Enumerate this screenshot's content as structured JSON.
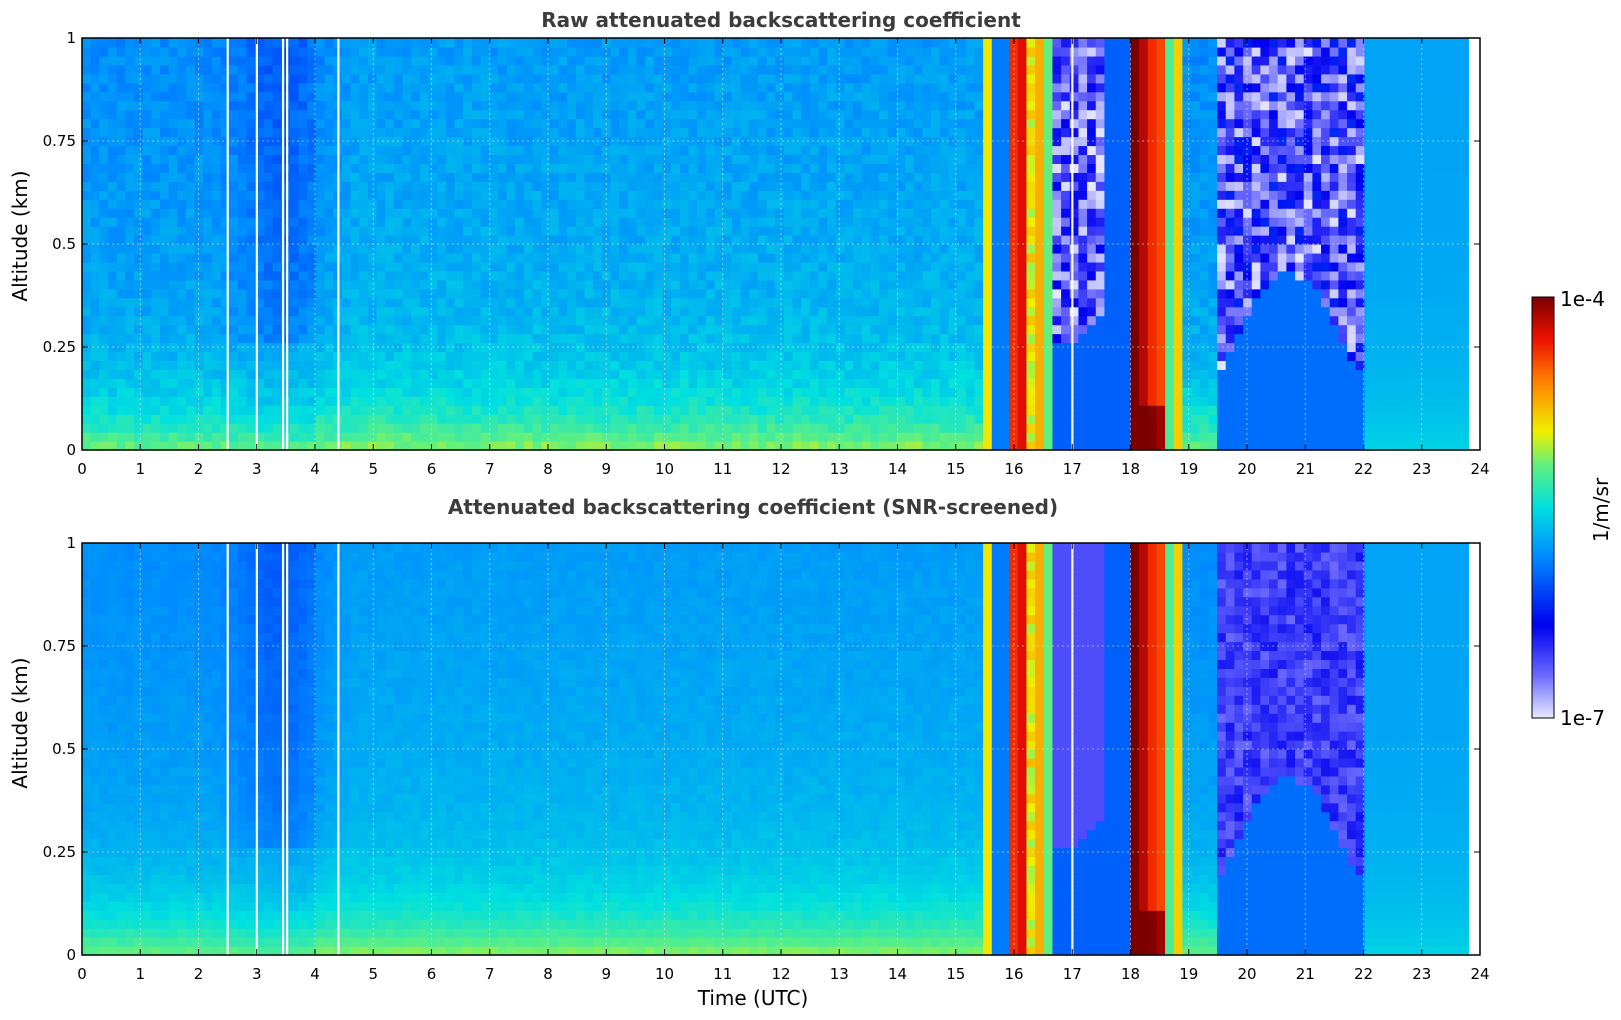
{
  "chart_data": [
    {
      "type": "heatmap",
      "title": "Raw attenuated backscattering coefficient",
      "xlabel": "",
      "ylabel": "Altitude (km)",
      "xlim": [
        0,
        24
      ],
      "ylim": [
        0,
        1
      ],
      "x_ticks": [
        "0",
        "1",
        "2",
        "3",
        "4",
        "5",
        "6",
        "7",
        "8",
        "9",
        "10",
        "11",
        "12",
        "13",
        "14",
        "15",
        "16",
        "17",
        "18",
        "19",
        "20",
        "21",
        "22",
        "23",
        "24"
      ],
      "y_ticks": [
        "0",
        "0.25",
        "0.5",
        "0.75",
        "1"
      ],
      "grid": true,
      "data_end_time": 23.8,
      "missing_data_times": [
        2.5,
        3.0,
        3.45,
        3.52,
        4.4,
        17.0
      ],
      "fog_bands": [
        {
          "start": 15.95,
          "end": 16.15,
          "log10_value": -4.4
        },
        {
          "start": 16.3,
          "end": 16.5,
          "log10_value": -4.5
        },
        {
          "start": 18.0,
          "end": 18.55,
          "log10_value": -4.2
        },
        {
          "start": 18.55,
          "end": 18.95,
          "log10_value": -5.0
        }
      ],
      "colorbar": {
        "min": "1e-7",
        "max": "1e-4",
        "label": "1/m/sr",
        "scale": "log"
      }
    },
    {
      "type": "heatmap",
      "title": "Attenuated backscattering coefficient (SNR-screened)",
      "xlabel": "Time (UTC)",
      "ylabel": "Altitude (km)",
      "xlim": [
        0,
        24
      ],
      "ylim": [
        0,
        1
      ],
      "x_ticks": [
        "0",
        "1",
        "2",
        "3",
        "4",
        "5",
        "6",
        "7",
        "8",
        "9",
        "10",
        "11",
        "12",
        "13",
        "14",
        "15",
        "16",
        "17",
        "18",
        "19",
        "20",
        "21",
        "22",
        "23",
        "24"
      ],
      "y_ticks": [
        "0",
        "0.25",
        "0.5",
        "0.75",
        "1"
      ],
      "grid": true,
      "data_end_time": 23.8,
      "missing_data_times": [
        2.5,
        3.0,
        3.45,
        3.52,
        4.4,
        17.0
      ],
      "fog_bands": [
        {
          "start": 15.95,
          "end": 16.15,
          "log10_value": -4.4
        },
        {
          "start": 16.3,
          "end": 16.5,
          "log10_value": -4.5
        },
        {
          "start": 18.0,
          "end": 18.55,
          "log10_value": -4.2
        },
        {
          "start": 18.55,
          "end": 18.95,
          "log10_value": -5.0
        }
      ],
      "colorbar": {
        "min": "1e-7",
        "max": "1e-4",
        "label": "1/m/sr",
        "scale": "log"
      }
    }
  ],
  "colors": {
    "background_field": "#2a6cf0",
    "near_surface": "#2e9cf4",
    "clear_above_fog": "#1616f0",
    "screened_low_signal": "#c8c8ff",
    "grid": "#e0e0e0",
    "title_text": "#3c3c3c"
  }
}
